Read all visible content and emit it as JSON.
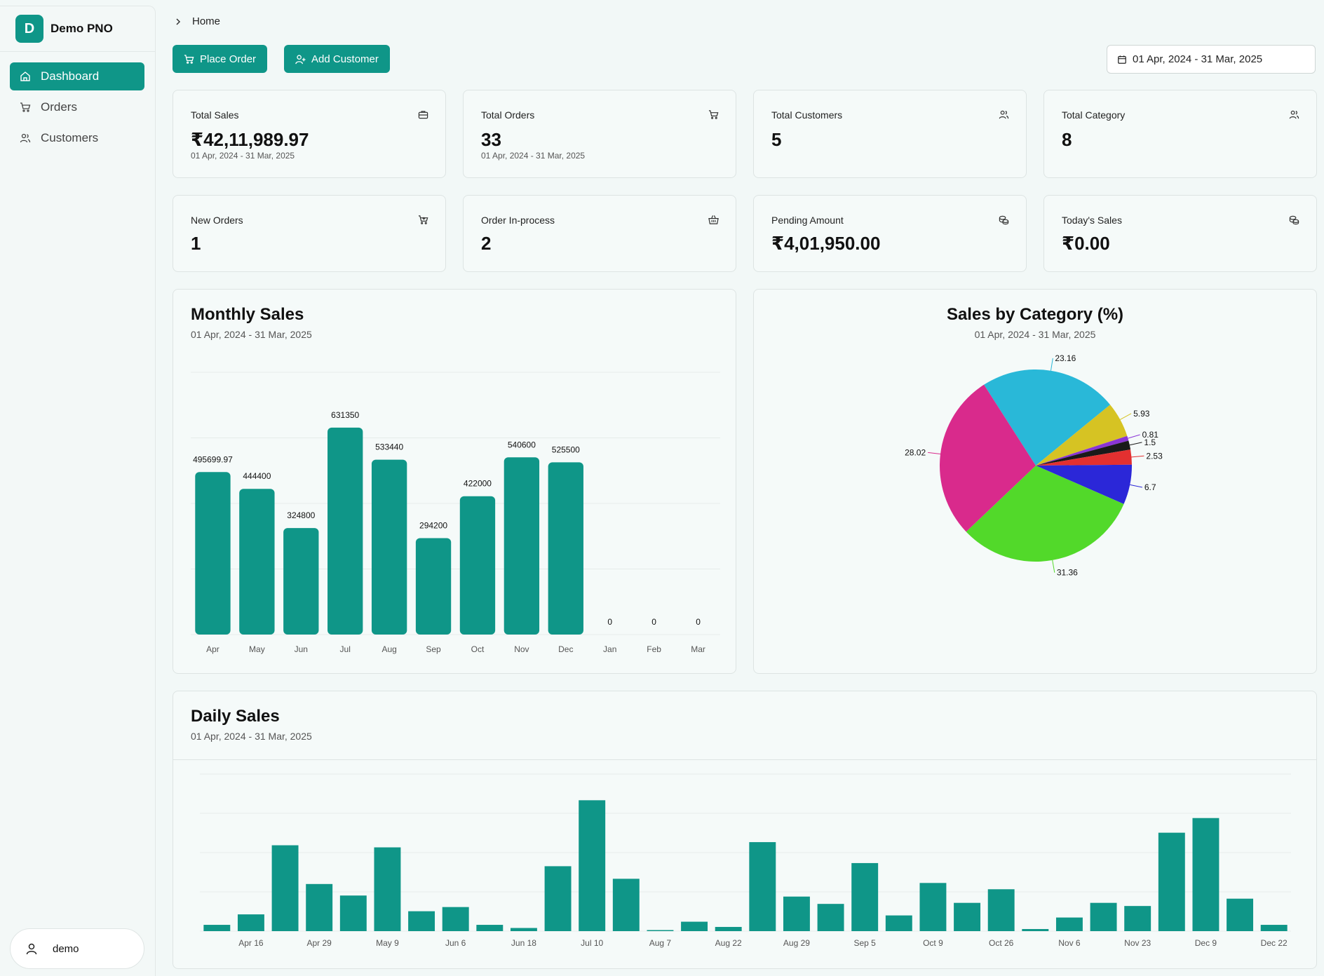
{
  "app": {
    "logo_letter": "D",
    "name": "Demo PNO"
  },
  "sidebar": {
    "items": [
      {
        "label": "Dashboard",
        "icon": "home-icon",
        "active": true
      },
      {
        "label": "Orders",
        "icon": "cart-icon",
        "active": false
      },
      {
        "label": "Customers",
        "icon": "users-icon",
        "active": false
      }
    ],
    "user": {
      "name": "demo"
    }
  },
  "header": {
    "breadcrumb": "Home",
    "place_order_label": "Place Order",
    "add_customer_label": "Add Customer",
    "date_range": "01 Apr, 2024 - 31 Mar, 2025"
  },
  "stats": [
    {
      "title": "Total Sales",
      "value": "₹42,11,989.97",
      "sub": "01 Apr, 2024 - 31 Mar, 2025",
      "icon": "briefcase-icon"
    },
    {
      "title": "Total Orders",
      "value": "33",
      "sub": "01 Apr, 2024 - 31 Mar, 2025",
      "icon": "cart-icon"
    },
    {
      "title": "Total Customers",
      "value": "5",
      "sub": "",
      "icon": "users-icon"
    },
    {
      "title": "Total Category",
      "value": "8",
      "sub": "",
      "icon": "users-icon"
    },
    {
      "title": "New Orders",
      "value": "1",
      "sub": "",
      "icon": "cart-plus-icon"
    },
    {
      "title": "Order In-process",
      "value": "2",
      "sub": "",
      "icon": "basket-icon"
    },
    {
      "title": "Pending Amount",
      "value": "₹4,01,950.00",
      "sub": "",
      "icon": "coins-icon"
    },
    {
      "title": "Today's Sales",
      "value": "₹0.00",
      "sub": "",
      "icon": "coins-icon"
    }
  ],
  "monthly_sales": {
    "title": "Monthly Sales",
    "sub": "01 Apr, 2024 - 31 Mar, 2025"
  },
  "category_sales": {
    "title": "Sales by Category (%)",
    "sub": "01 Apr, 2024 - 31 Mar, 2025"
  },
  "daily_sales": {
    "title": "Daily Sales",
    "sub": "01 Apr, 2024 - 31 Mar, 2025"
  },
  "chart_data": [
    {
      "type": "bar",
      "title": "Monthly Sales",
      "subtitle": "01 Apr, 2024 - 31 Mar, 2025",
      "categories": [
        "Apr",
        "May",
        "Jun",
        "Jul",
        "Aug",
        "Sep",
        "Oct",
        "Nov",
        "Dec",
        "Jan",
        "Feb",
        "Mar"
      ],
      "values": [
        495699.97,
        444400,
        324800,
        631350,
        533440,
        294200,
        422000,
        540600,
        525500,
        0,
        0,
        0
      ],
      "value_labels": [
        "495699.97",
        "444400",
        "324800",
        "631350",
        "533440",
        "294200",
        "422000",
        "540600",
        "525500",
        "0",
        "0",
        "0"
      ],
      "ylim": [
        0,
        800000
      ],
      "grid": true,
      "color": "#0f9688"
    },
    {
      "type": "pie",
      "title": "Sales by Category (%)",
      "subtitle": "01 Apr, 2024 - 31 Mar, 2025",
      "slices": [
        {
          "value": 23.16,
          "color": "#29b8d8"
        },
        {
          "value": 5.93,
          "color": "#d6c323"
        },
        {
          "value": 0.81,
          "color": "#8a35d6"
        },
        {
          "value": 1.5,
          "color": "#1a1a1a"
        },
        {
          "value": 2.53,
          "color": "#e33030"
        },
        {
          "value": 6.7,
          "color": "#2b27d8"
        },
        {
          "value": 31.36,
          "color": "#52d92a"
        },
        {
          "value": 28.02,
          "color": "#d92a8c"
        }
      ]
    },
    {
      "type": "bar",
      "title": "Daily Sales",
      "subtitle": "01 Apr, 2024 - 31 Mar, 2025",
      "tick_labels": [
        "Apr 16",
        "Apr 29",
        "May 9",
        "Jun 6",
        "Jun 18",
        "Jul 10",
        "Aug 7",
        "Aug 22",
        "Aug 29",
        "Sep 5",
        "Oct 9",
        "Oct 26",
        "Nov 6",
        "Nov 23",
        "Dec 9",
        "Dec 22"
      ],
      "values": [
        6,
        16,
        82,
        45,
        34,
        80,
        19,
        23,
        6,
        3,
        62,
        125,
        50,
        1,
        9,
        4,
        85,
        33,
        26,
        65,
        15,
        46,
        27,
        40,
        2,
        13,
        27,
        24,
        94,
        108,
        31,
        6
      ],
      "ylim": [
        0,
        150
      ],
      "grid": true,
      "color": "#0f9688"
    }
  ]
}
